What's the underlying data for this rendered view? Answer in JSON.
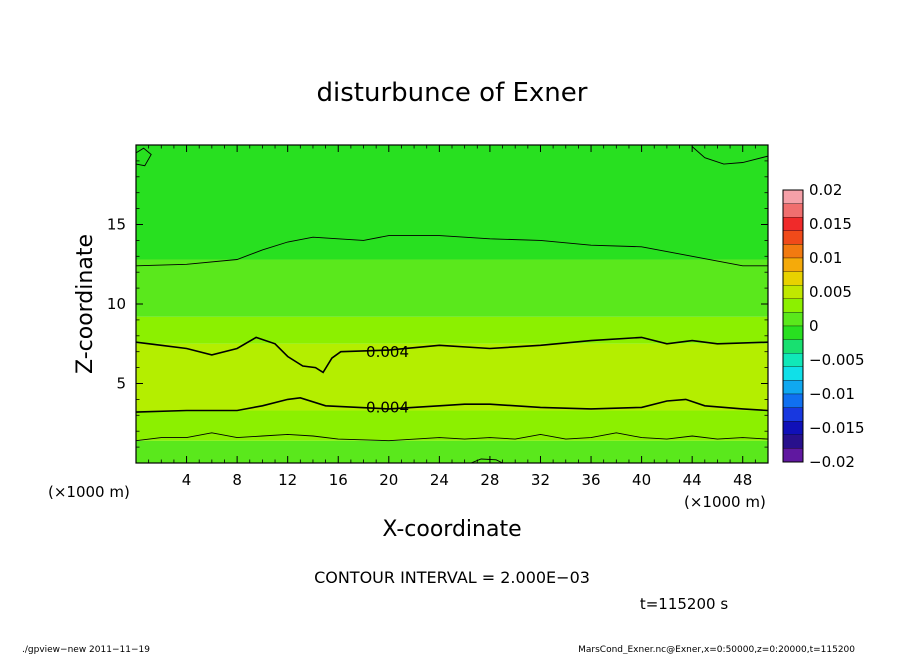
{
  "chart_data": {
    "type": "heatmap",
    "title": "disturbunce of Exner",
    "xlabel": "X-coordinate",
    "ylabel": "Z-coordinate",
    "x_unit_left": "(×1000 m)",
    "x_unit_right": "(×1000 m)",
    "xlim": [
      0,
      50
    ],
    "ylim": [
      0,
      20
    ],
    "x_ticks": [
      4,
      8,
      12,
      16,
      20,
      24,
      28,
      32,
      36,
      40,
      44,
      48
    ],
    "y_ticks": [
      5,
      10,
      15
    ],
    "colorbar": {
      "labels": [
        "0.02",
        "0.015",
        "0.01",
        "0.005",
        "0",
        "−0.005",
        "−0.01",
        "−0.015",
        "−0.02"
      ],
      "levels": [
        {
          "from": 0.018,
          "to": 0.02,
          "color": "#f5a0a8"
        },
        {
          "from": 0.016,
          "to": 0.018,
          "color": "#f06e6e"
        },
        {
          "from": 0.014,
          "to": 0.016,
          "color": "#f02a2a"
        },
        {
          "from": 0.012,
          "to": 0.014,
          "color": "#f04a1a"
        },
        {
          "from": 0.01,
          "to": 0.012,
          "color": "#f27a10"
        },
        {
          "from": 0.008,
          "to": 0.01,
          "color": "#f5aa0a"
        },
        {
          "from": 0.006,
          "to": 0.008,
          "color": "#e8d200"
        },
        {
          "from": 0.004,
          "to": 0.006,
          "color": "#c0e800"
        },
        {
          "from": 0.002,
          "to": 0.004,
          "color": "#8cf000"
        },
        {
          "from": 0.0,
          "to": 0.002,
          "color": "#5ae81c"
        },
        {
          "from": -0.002,
          "to": 0.0,
          "color": "#28e020"
        },
        {
          "from": -0.004,
          "to": -0.002,
          "color": "#18e070"
        },
        {
          "from": -0.006,
          "to": -0.004,
          "color": "#10e8b8"
        },
        {
          "from": -0.008,
          "to": -0.006,
          "color": "#10e0e8"
        },
        {
          "from": -0.01,
          "to": -0.008,
          "color": "#10a8f0"
        },
        {
          "from": -0.012,
          "to": -0.01,
          "color": "#1070f0"
        },
        {
          "from": -0.014,
          "to": -0.012,
          "color": "#1838e0"
        },
        {
          "from": -0.016,
          "to": -0.014,
          "color": "#1010b8"
        },
        {
          "from": -0.018,
          "to": -0.016,
          "color": "#28108c"
        },
        {
          "from": -0.02,
          "to": -0.018,
          "color": "#6018a0"
        }
      ]
    },
    "bands": [
      {
        "from": 0.0,
        "to": 1.4,
        "color": "#5ae81c"
      },
      {
        "from": 1.4,
        "to": 3.3,
        "color": "#8cf000"
      },
      {
        "from": 3.3,
        "to": 7.5,
        "color": "#b4ee00"
      },
      {
        "from": 7.5,
        "to": 9.2,
        "color": "#8cf000"
      },
      {
        "from": 9.2,
        "to": 12.8,
        "color": "#5ae81c"
      },
      {
        "from": 12.8,
        "to": 20.0,
        "color": "#28e020"
      }
    ],
    "contours": [
      {
        "label": "0.004",
        "label_at": [
          18.2,
          7.05
        ],
        "points": [
          [
            0,
            7.6
          ],
          [
            2,
            7.4
          ],
          [
            4,
            7.2
          ],
          [
            6,
            6.8
          ],
          [
            8,
            7.2
          ],
          [
            9.5,
            7.9
          ],
          [
            11,
            7.5
          ],
          [
            12,
            6.7
          ],
          [
            13.2,
            6.1
          ],
          [
            14.2,
            6.0
          ],
          [
            14.8,
            5.7
          ],
          [
            15.5,
            6.6
          ],
          [
            16.2,
            7.0
          ],
          [
            20,
            7.1
          ],
          [
            24,
            7.4
          ],
          [
            28,
            7.2
          ],
          [
            32,
            7.4
          ],
          [
            36,
            7.7
          ],
          [
            40,
            7.9
          ],
          [
            42,
            7.5
          ],
          [
            44,
            7.7
          ],
          [
            46,
            7.5
          ],
          [
            50,
            7.6
          ]
        ]
      },
      {
        "label": "0.004",
        "label_at": [
          18.2,
          3.55
        ],
        "points": [
          [
            0,
            3.2
          ],
          [
            4,
            3.3
          ],
          [
            8,
            3.3
          ],
          [
            10,
            3.6
          ],
          [
            12,
            4.0
          ],
          [
            13,
            4.1
          ],
          [
            15,
            3.6
          ],
          [
            20,
            3.4
          ],
          [
            24,
            3.6
          ],
          [
            26,
            3.7
          ],
          [
            28,
            3.7
          ],
          [
            32,
            3.5
          ],
          [
            36,
            3.4
          ],
          [
            40,
            3.5
          ],
          [
            42,
            3.9
          ],
          [
            43.5,
            4.0
          ],
          [
            45,
            3.6
          ],
          [
            48,
            3.4
          ],
          [
            50,
            3.3
          ]
        ]
      },
      {
        "label": "",
        "label_at": null,
        "points": [
          [
            0,
            12.4
          ],
          [
            4,
            12.5
          ],
          [
            8,
            12.8
          ],
          [
            10,
            13.4
          ],
          [
            12,
            13.9
          ],
          [
            14,
            14.2
          ],
          [
            16,
            14.1
          ],
          [
            18,
            14.0
          ],
          [
            20,
            14.3
          ],
          [
            24,
            14.3
          ],
          [
            28,
            14.1
          ],
          [
            32,
            14.0
          ],
          [
            36,
            13.7
          ],
          [
            40,
            13.6
          ],
          [
            44,
            13.0
          ],
          [
            48,
            12.4
          ],
          [
            50,
            12.4
          ]
        ]
      },
      {
        "label": "",
        "label_at": null,
        "points": [
          [
            0,
            1.4
          ],
          [
            2,
            1.6
          ],
          [
            4,
            1.6
          ],
          [
            6,
            1.9
          ],
          [
            8,
            1.6
          ],
          [
            10,
            1.7
          ],
          [
            12,
            1.8
          ],
          [
            14,
            1.7
          ],
          [
            16,
            1.5
          ],
          [
            20,
            1.4
          ],
          [
            24,
            1.6
          ],
          [
            26,
            1.5
          ],
          [
            28,
            1.6
          ],
          [
            30,
            1.5
          ],
          [
            32,
            1.8
          ],
          [
            34,
            1.5
          ],
          [
            36,
            1.6
          ],
          [
            38,
            1.9
          ],
          [
            40,
            1.6
          ],
          [
            42,
            1.5
          ],
          [
            44,
            1.7
          ],
          [
            46,
            1.5
          ],
          [
            48,
            1.6
          ],
          [
            50,
            1.5
          ]
        ]
      },
      {
        "label": "",
        "label_at": null,
        "points": [
          [
            44,
            19.9
          ],
          [
            45,
            19.2
          ],
          [
            46.5,
            18.8
          ],
          [
            48,
            18.9
          ],
          [
            50,
            19.3
          ]
        ]
      }
    ],
    "small_contours": [
      {
        "points": [
          [
            0,
            19.5
          ],
          [
            0.6,
            19.8
          ],
          [
            1.2,
            19.4
          ],
          [
            0.7,
            18.7
          ],
          [
            0,
            18.8
          ]
        ]
      },
      {
        "points": [
          [
            26.5,
            0
          ],
          [
            27.3,
            0.25
          ],
          [
            28.5,
            0.2
          ],
          [
            29,
            0
          ]
        ]
      }
    ],
    "annotation": "CONTOUR INTERVAL = 2.000E−03",
    "time_label": "t=115200 s",
    "footer_left": "./gpview−new   2011−11−19",
    "footer_right": "MarsCond_Exner.nc@Exner,x=0:50000,z=0:20000,t=115200"
  }
}
